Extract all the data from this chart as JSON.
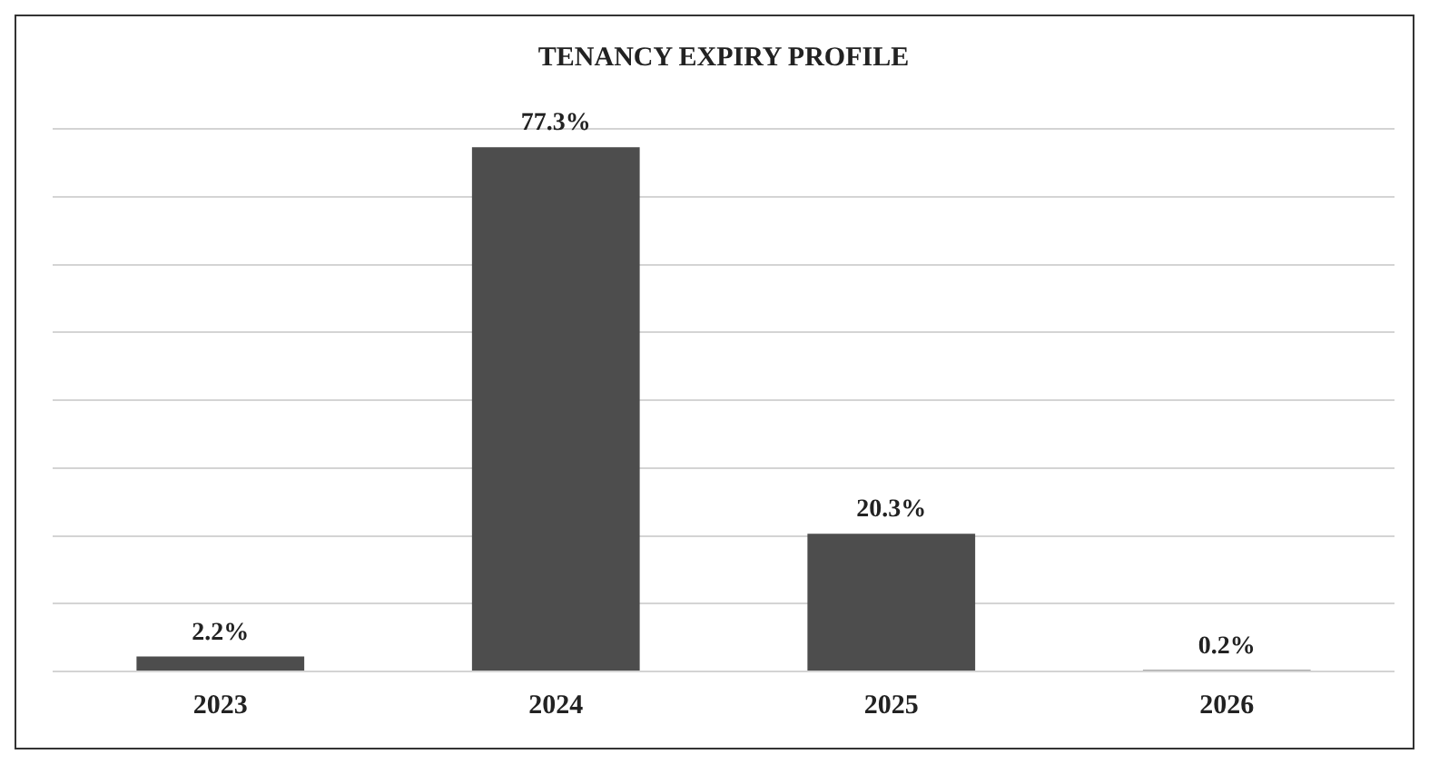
{
  "chart_data": {
    "type": "bar",
    "title": "TENANCY EXPIRY PROFILE",
    "categories": [
      "2023",
      "2024",
      "2025",
      "2026"
    ],
    "values": [
      2.2,
      77.3,
      20.3,
      0.2
    ],
    "value_labels": [
      "2.2%",
      "77.3%",
      "20.3%",
      "0.2%"
    ],
    "color": "#4d4d4d",
    "grid": "y",
    "tick_labels": "x",
    "legend": false
  }
}
